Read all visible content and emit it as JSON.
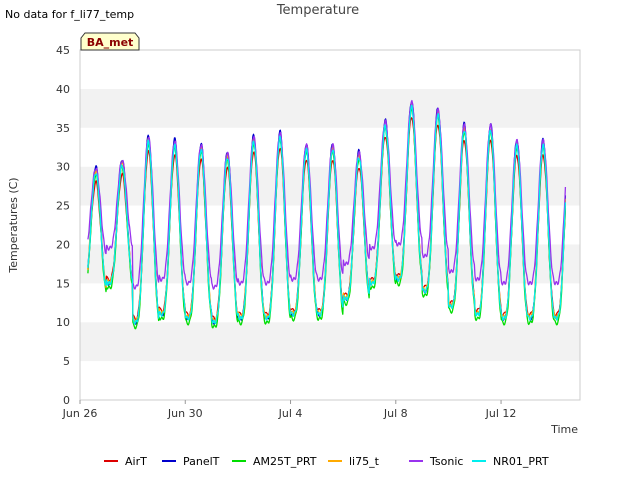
{
  "header": {
    "nodata_text": "No data for f_li77_temp"
  },
  "badge": {
    "label": "BA_met"
  },
  "chart_data": {
    "type": "line",
    "title": "Temperature",
    "xlabel": "Time",
    "ylabel": "Temperatures (C)",
    "ylim": [
      0,
      45
    ],
    "yticks": [
      0,
      5,
      10,
      15,
      20,
      25,
      30,
      35,
      40,
      45
    ],
    "xlim": [
      "2024-06-26",
      "2024-07-15"
    ],
    "xticks": [
      {
        "value": "2024-06-26",
        "label": "Jun 26"
      },
      {
        "value": "2024-06-30",
        "label": "Jun 30"
      },
      {
        "value": "2024-07-04",
        "label": "Jul 4"
      },
      {
        "value": "2024-07-08",
        "label": "Jul 8"
      },
      {
        "value": "2024-07-12",
        "label": "Jul 12"
      }
    ],
    "grid": "horizontal-bands",
    "legend_position": "bottom",
    "series": [
      {
        "name": "AirT",
        "color": "#dd0000",
        "amp_offset": 0,
        "base_offset": 0.5
      },
      {
        "name": "PanelT",
        "color": "#0000cc",
        "amp_offset": 2.0,
        "base_offset": 0
      },
      {
        "name": "AM25T_PRT",
        "color": "#00dd00",
        "amp_offset": 1.0,
        "base_offset": -0.6
      },
      {
        "name": "li75_t",
        "color": "#ffaa00",
        "amp_offset": 1.5,
        "base_offset": 0.2
      },
      {
        "name": "Tsonic",
        "color": "#9933ee",
        "amp_offset": 1.8,
        "base_offset": 4.5
      },
      {
        "name": "NR01_PRT",
        "color": "#00eeee",
        "amp_offset": 1.2,
        "base_offset": 0
      }
    ],
    "daily_max": [
      30,
      31,
      34,
      33.5,
      33,
      32,
      34,
      34.5,
      33,
      33,
      32,
      36,
      38.5,
      37.5,
      35.5,
      35.5,
      33.5,
      33.5
    ],
    "daily_min": [
      14,
      15,
      10,
      11,
      10.5,
      10,
      10.5,
      10.5,
      11,
      11,
      13,
      15,
      15.5,
      14,
      12,
      11,
      10.5,
      10.5
    ]
  }
}
